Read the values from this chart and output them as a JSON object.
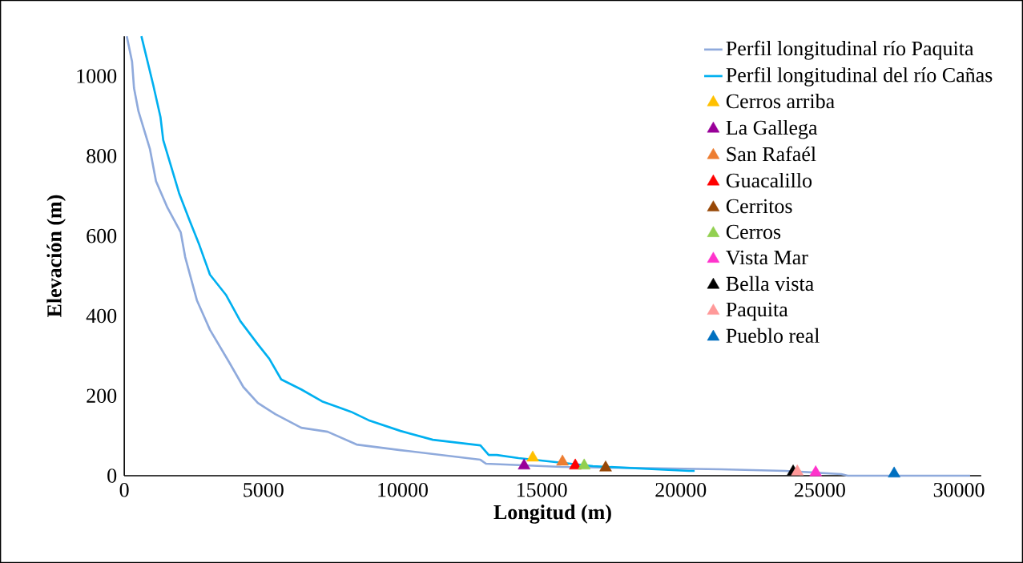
{
  "chart_data": {
    "type": "line",
    "xlabel": "Longitud (m)",
    "ylabel": "Elevación (m)",
    "xlim": [
      0,
      30800
    ],
    "ylim": [
      0,
      1100
    ],
    "xticks": [
      0,
      5000,
      10000,
      15000,
      20000,
      25000,
      30000
    ],
    "yticks": [
      0,
      200,
      400,
      600,
      800,
      1000
    ],
    "grid": false,
    "legend": "top right",
    "series": [
      {
        "name": "Perfil longitudinal río Paquita",
        "color": "#8faadc",
        "marker": "none",
        "x": [
          90,
          280,
          350,
          510,
          920,
          1140,
          1550,
          2030,
          2190,
          2610,
          3080,
          3760,
          4280,
          4800,
          5430,
          6360,
          7310,
          8350,
          9930,
          12800,
          13000,
          15700,
          21450,
          23750,
          25770,
          26000,
          30400
        ],
        "values": [
          1100,
          1036,
          970,
          912,
          818,
          737,
          671,
          609,
          547,
          439,
          365,
          285,
          222,
          182,
          154,
          120,
          110,
          78,
          64,
          40,
          30,
          22,
          16,
          12,
          4,
          0,
          0
        ]
      },
      {
        "name": "Perfil longitudinal del río Cañas",
        "color": "#00b0f0",
        "marker": "none",
        "x": [
          615,
          1040,
          1300,
          1400,
          1970,
          2330,
          2700,
          3080,
          3650,
          4170,
          4800,
          5210,
          5640,
          6360,
          7110,
          8150,
          8780,
          9930,
          11090,
          12800,
          13100,
          13390,
          14170,
          16840,
          20300,
          20500
        ],
        "values": [
          1100,
          978,
          898,
          840,
          707,
          642,
          577,
          503,
          453,
          387,
          329,
          293,
          241,
          216,
          186,
          160,
          139,
          112,
          90,
          76,
          52,
          52,
          44,
          24,
          12,
          12
        ]
      },
      {
        "name": "Cerros arriba",
        "type": "scatter",
        "marker": "triangle",
        "color": "#ffc000",
        "x": [
          14680
        ],
        "values": [
          45
        ]
      },
      {
        "name": "La Gallega",
        "type": "scatter",
        "marker": "triangle",
        "color": "#990099",
        "x": [
          14370
        ],
        "values": [
          25
        ]
      },
      {
        "name": "San Rafaél",
        "type": "scatter",
        "marker": "triangle",
        "color": "#ed7d31",
        "x": [
          15750
        ],
        "values": [
          35
        ]
      },
      {
        "name": "Guacalillo",
        "type": "scatter",
        "marker": "triangle",
        "color": "#ff0000",
        "x": [
          16210
        ],
        "values": [
          25
        ]
      },
      {
        "name": "Cerritos",
        "type": "scatter",
        "marker": "triangle",
        "color": "#974706",
        "x": [
          17300
        ],
        "values": [
          20
        ]
      },
      {
        "name": "Cerros",
        "type": "scatter",
        "marker": "triangle",
        "color": "#92d050",
        "x": [
          16530
        ],
        "values": [
          25
        ]
      },
      {
        "name": "Vista Mar",
        "type": "scatter",
        "marker": "triangle",
        "color": "#ff33cc",
        "x": [
          24850
        ],
        "values": [
          8
        ]
      },
      {
        "name": "Bella vista",
        "type": "scatter",
        "marker": "triangle",
        "color": "#000000",
        "x": [
          24040
        ],
        "values": [
          10
        ]
      },
      {
        "name": "Paquita",
        "type": "scatter",
        "marker": "triangle",
        "color": "#ff9999",
        "x": [
          24190
        ],
        "values": [
          10
        ]
      },
      {
        "name": "Pueblo real",
        "type": "scatter",
        "marker": "triangle",
        "color": "#0070c0",
        "x": [
          27670
        ],
        "values": [
          5
        ]
      }
    ]
  }
}
